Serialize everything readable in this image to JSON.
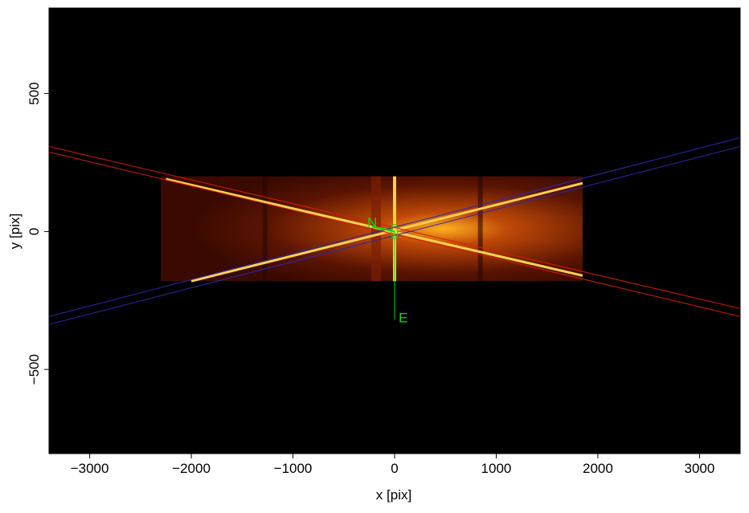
{
  "chart_data": {
    "type": "image",
    "xlabel": "x [pix]",
    "ylabel": "y [pix]",
    "xlim": [
      -3400,
      3400
    ],
    "ylim": [
      -805,
      810
    ],
    "xticks": [
      {
        "value": -3000,
        "label": "−3000"
      },
      {
        "value": -2000,
        "label": "−2000"
      },
      {
        "value": -1000,
        "label": "−1000"
      },
      0,
      1000,
      2000,
      3000
    ],
    "yticks": [
      {
        "value": -500,
        "label": "−500"
      },
      0,
      500
    ],
    "annotations": [
      "N",
      "E"
    ],
    "series": [
      {
        "color": "#d02000",
        "x": [
          -3400,
          3400
        ],
        "values": [
          308,
          -279
        ]
      },
      {
        "color": "#d02000",
        "x": [
          -3400,
          3400
        ],
        "values": [
          288,
          -308
        ]
      },
      {
        "color": "#2a2aa8",
        "x": [
          -3400,
          3400
        ],
        "values": [
          -308,
          340
        ]
      },
      {
        "color": "#2a2aa8",
        "x": [
          -3400,
          3400
        ],
        "values": [
          -337,
          308
        ]
      }
    ]
  }
}
